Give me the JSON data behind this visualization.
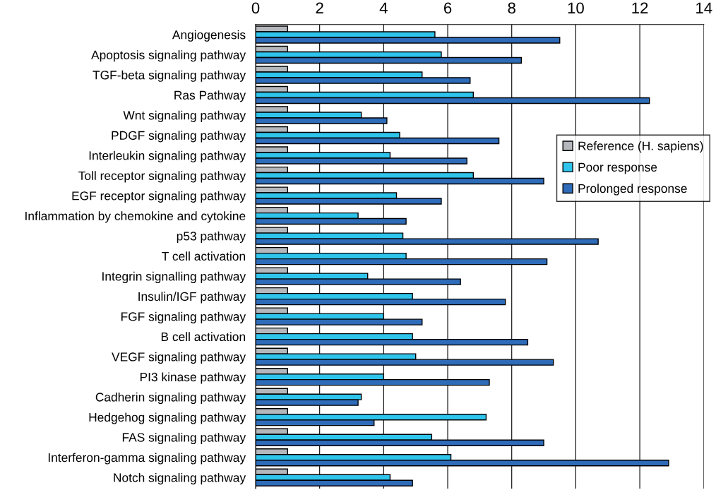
{
  "chart_data": {
    "type": "bar",
    "orientation": "horizontal",
    "categories": [
      "Angiogenesis",
      "Apoptosis signaling pathway",
      "TGF-beta signaling pathway",
      "Ras Pathway",
      "Wnt signaling pathway",
      "PDGF signaling pathway",
      "Interleukin signaling pathway",
      "Toll receptor signaling pathway",
      "EGF receptor signaling pathway",
      "Inflammation by chemokine and cytokine",
      "p53 pathway",
      "T cell activation",
      "Integrin signalling pathway",
      "Insulin/IGF pathway",
      "FGF signaling pathway",
      "B cell activation",
      "VEGF signaling pathway",
      "PI3 kinase pathway",
      "Cadherin signaling pathway",
      "Hedgehog signaling pathway",
      "FAS signaling pathway",
      "Interferon-gamma signaling pathway",
      "Notch signaling pathway"
    ],
    "series": [
      {
        "name": "Reference (H. sapiens)",
        "color": "#b4b8bc",
        "values": [
          1,
          1,
          1,
          1,
          1,
          1,
          1,
          1,
          1,
          1,
          1,
          1,
          1,
          1,
          1,
          1,
          1,
          1,
          1,
          1,
          1,
          1,
          1
        ]
      },
      {
        "name": "Poor response",
        "color": "#2fc4ec",
        "values": [
          5.6,
          5.8,
          5.2,
          6.8,
          3.3,
          4.5,
          4.2,
          6.8,
          4.4,
          3.2,
          4.6,
          4.7,
          3.5,
          4.9,
          4.0,
          4.9,
          5.0,
          4.0,
          3.3,
          7.2,
          5.5,
          6.1,
          4.2
        ]
      },
      {
        "name": "Prolonged response",
        "color": "#2e6bb8",
        "values": [
          9.5,
          8.3,
          6.7,
          12.3,
          4.1,
          7.6,
          6.6,
          9.0,
          5.8,
          4.7,
          10.7,
          9.1,
          6.4,
          7.8,
          5.2,
          8.5,
          9.3,
          7.3,
          3.2,
          3.7,
          9.0,
          12.9,
          4.9
        ]
      }
    ],
    "xlim": [
      0,
      14
    ],
    "xticks": [
      0,
      2,
      4,
      6,
      8,
      10,
      12,
      14
    ],
    "grid": "x",
    "legend": "right"
  }
}
